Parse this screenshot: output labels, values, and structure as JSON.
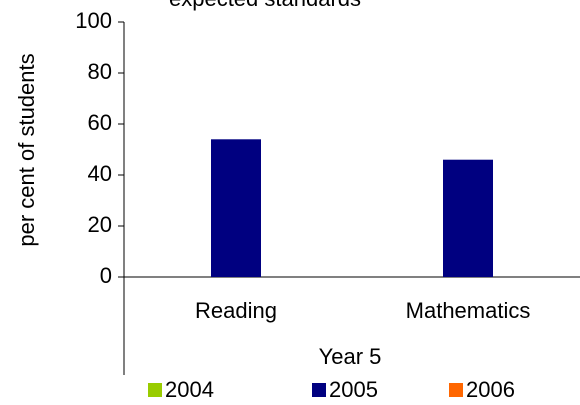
{
  "chart_data": {
    "type": "bar",
    "title": "expected standards",
    "ylabel": "per cent of students",
    "xlabel": "Year 5",
    "categories": [
      "Reading",
      "Mathematics"
    ],
    "series": [
      {
        "name": "2004",
        "color": "#99cc00",
        "values": [
          null,
          null
        ]
      },
      {
        "name": "2005",
        "color": "#000080",
        "values": [
          54,
          46
        ]
      },
      {
        "name": "2006",
        "color": "#ff6600",
        "values": [
          null,
          null
        ]
      }
    ],
    "ylim": [
      0,
      100
    ],
    "yticks": [
      0,
      20,
      40,
      60,
      80,
      100
    ],
    "grid": false,
    "legend": "bottom"
  }
}
